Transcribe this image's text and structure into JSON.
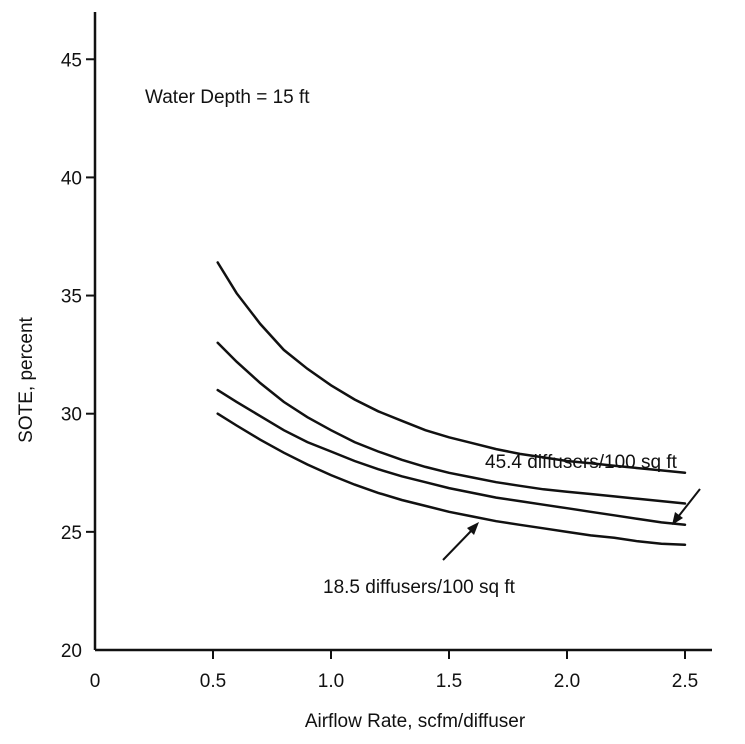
{
  "chart_data": {
    "type": "line",
    "title": "",
    "xlabel": "Airflow Rate, scfm/diffuser",
    "ylabel": "SOTE, percent",
    "xlim": [
      0,
      2.5
    ],
    "ylim": [
      20,
      47
    ],
    "x_ticks": [
      0,
      0.5,
      1.0,
      1.5,
      2.0,
      2.5
    ],
    "x_tick_labels": [
      "0",
      "0.5",
      "1.0",
      "1.5",
      "2.0",
      "2.5"
    ],
    "y_ticks": [
      20,
      25,
      30,
      35,
      40,
      45
    ],
    "y_tick_labels": [
      "20",
      "25",
      "30",
      "35",
      "40",
      "45"
    ],
    "grid": false,
    "annotations": [
      {
        "text": "Water Depth  =  15 ft"
      },
      {
        "text": "45.4 diffusers/100 sq ft",
        "points_to_x": 2.47,
        "points_to_y": 27.6
      },
      {
        "text": "18.5 diffusers/100 sq ft",
        "points_to_x": 1.65,
        "points_to_y": 25.7
      }
    ],
    "series": [
      {
        "x": [
          0.52,
          0.6,
          0.7,
          0.8,
          0.9,
          1.0,
          1.1,
          1.2,
          1.3,
          1.4,
          1.5,
          1.6,
          1.7,
          1.8,
          1.9,
          2.0,
          2.1,
          2.2,
          2.3,
          2.4,
          2.5
        ],
        "values": [
          36.4,
          35.1,
          33.8,
          32.7,
          31.9,
          31.2,
          30.6,
          30.1,
          29.7,
          29.3,
          29.0,
          28.75,
          28.5,
          28.3,
          28.15,
          28.0,
          27.9,
          27.8,
          27.7,
          27.6,
          27.5
        ]
      },
      {
        "x": [
          0.52,
          0.6,
          0.7,
          0.8,
          0.9,
          1.0,
          1.1,
          1.2,
          1.3,
          1.4,
          1.5,
          1.6,
          1.7,
          1.8,
          1.9,
          2.0,
          2.1,
          2.2,
          2.3,
          2.4,
          2.5
        ],
        "values": [
          33.0,
          32.2,
          31.3,
          30.5,
          29.85,
          29.3,
          28.8,
          28.4,
          28.05,
          27.75,
          27.5,
          27.3,
          27.1,
          26.95,
          26.8,
          26.7,
          26.6,
          26.5,
          26.4,
          26.3,
          26.2
        ]
      },
      {
        "x": [
          0.52,
          0.6,
          0.7,
          0.8,
          0.9,
          1.0,
          1.1,
          1.2,
          1.3,
          1.4,
          1.5,
          1.6,
          1.7,
          1.8,
          1.9,
          2.0,
          2.1,
          2.2,
          2.3,
          2.4,
          2.5
        ],
        "values": [
          31.0,
          30.5,
          29.9,
          29.3,
          28.8,
          28.4,
          28.0,
          27.65,
          27.35,
          27.1,
          26.85,
          26.65,
          26.45,
          26.3,
          26.15,
          26.0,
          25.85,
          25.7,
          25.55,
          25.4,
          25.3
        ]
      },
      {
        "x": [
          0.52,
          0.6,
          0.7,
          0.8,
          0.9,
          1.0,
          1.1,
          1.2,
          1.3,
          1.4,
          1.5,
          1.6,
          1.7,
          1.8,
          1.9,
          2.0,
          2.1,
          2.2,
          2.3,
          2.4,
          2.5
        ],
        "values": [
          30.0,
          29.5,
          28.9,
          28.35,
          27.85,
          27.4,
          27.0,
          26.65,
          26.35,
          26.1,
          25.85,
          25.65,
          25.45,
          25.3,
          25.15,
          25.0,
          24.85,
          24.75,
          24.6,
          24.5,
          24.45
        ]
      }
    ]
  }
}
